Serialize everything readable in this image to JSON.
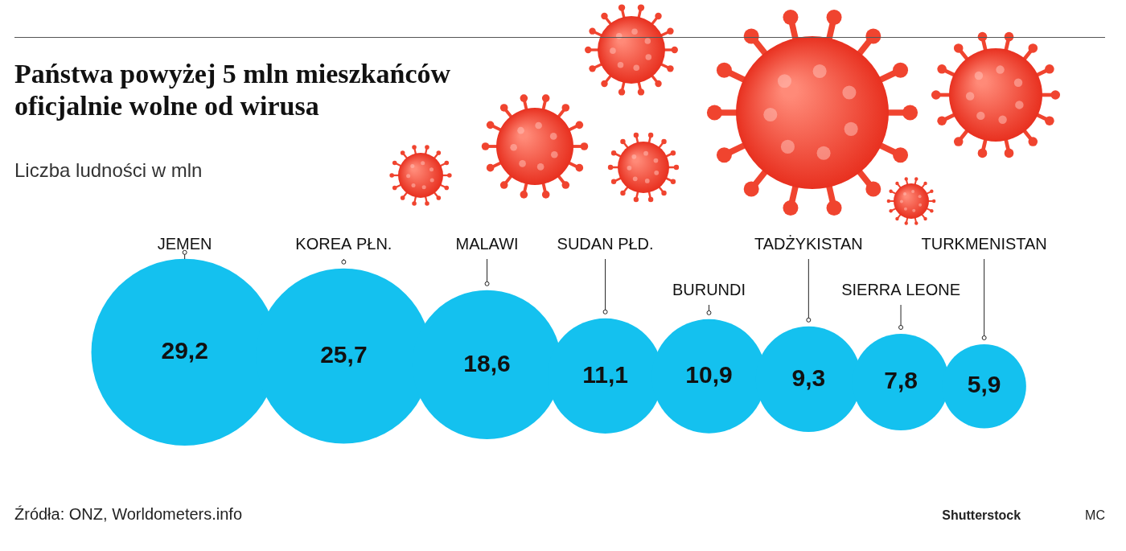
{
  "chart_data": {
    "type": "bubble",
    "title": "Państwa powyżej 5 mln mieszkańców oficjalnie wolne od wirusa",
    "subtitle": "Liczba ludności w mln",
    "categories": [
      "JEMEN",
      "KOREA PŁN.",
      "MALAWI",
      "SUDAN PŁD.",
      "BURUNDI",
      "TADŻYKISTAN",
      "SIERRA LEONE",
      "TURKMENISTAN"
    ],
    "values": [
      29.2,
      25.7,
      18.6,
      11.1,
      10.9,
      9.3,
      7.8,
      5.9
    ],
    "value_labels": [
      "29,2",
      "25,7",
      "18,6",
      "11,1",
      "10,9",
      "9,3",
      "7,8",
      "5,9"
    ],
    "data_labels": true,
    "color": "#14c1ef",
    "tick_labels": false,
    "grid": false,
    "annotations": [
      "Źródła: ONZ, Worldometers.info",
      "Shutterstock",
      "MC"
    ]
  }
}
